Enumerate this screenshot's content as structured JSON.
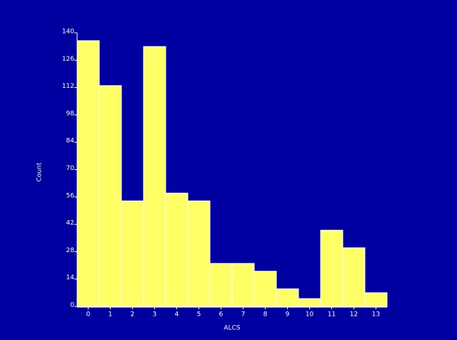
{
  "chart_data": {
    "type": "bar",
    "x_label": "ALCS",
    "y_label": "Count",
    "categories": [
      "0",
      "1",
      "2",
      "3",
      "4",
      "5",
      "6",
      "7",
      "8",
      "9",
      "10",
      "11",
      "12",
      "13"
    ],
    "values": [
      136,
      113,
      54,
      133,
      58,
      54,
      22,
      22,
      18,
      9,
      4,
      39,
      30,
      7
    ],
    "color": "#ffff66",
    "ylim": [
      0,
      140
    ],
    "yticks": [
      0,
      14,
      28,
      42,
      56,
      70,
      84,
      98,
      112,
      126,
      140
    ]
  }
}
